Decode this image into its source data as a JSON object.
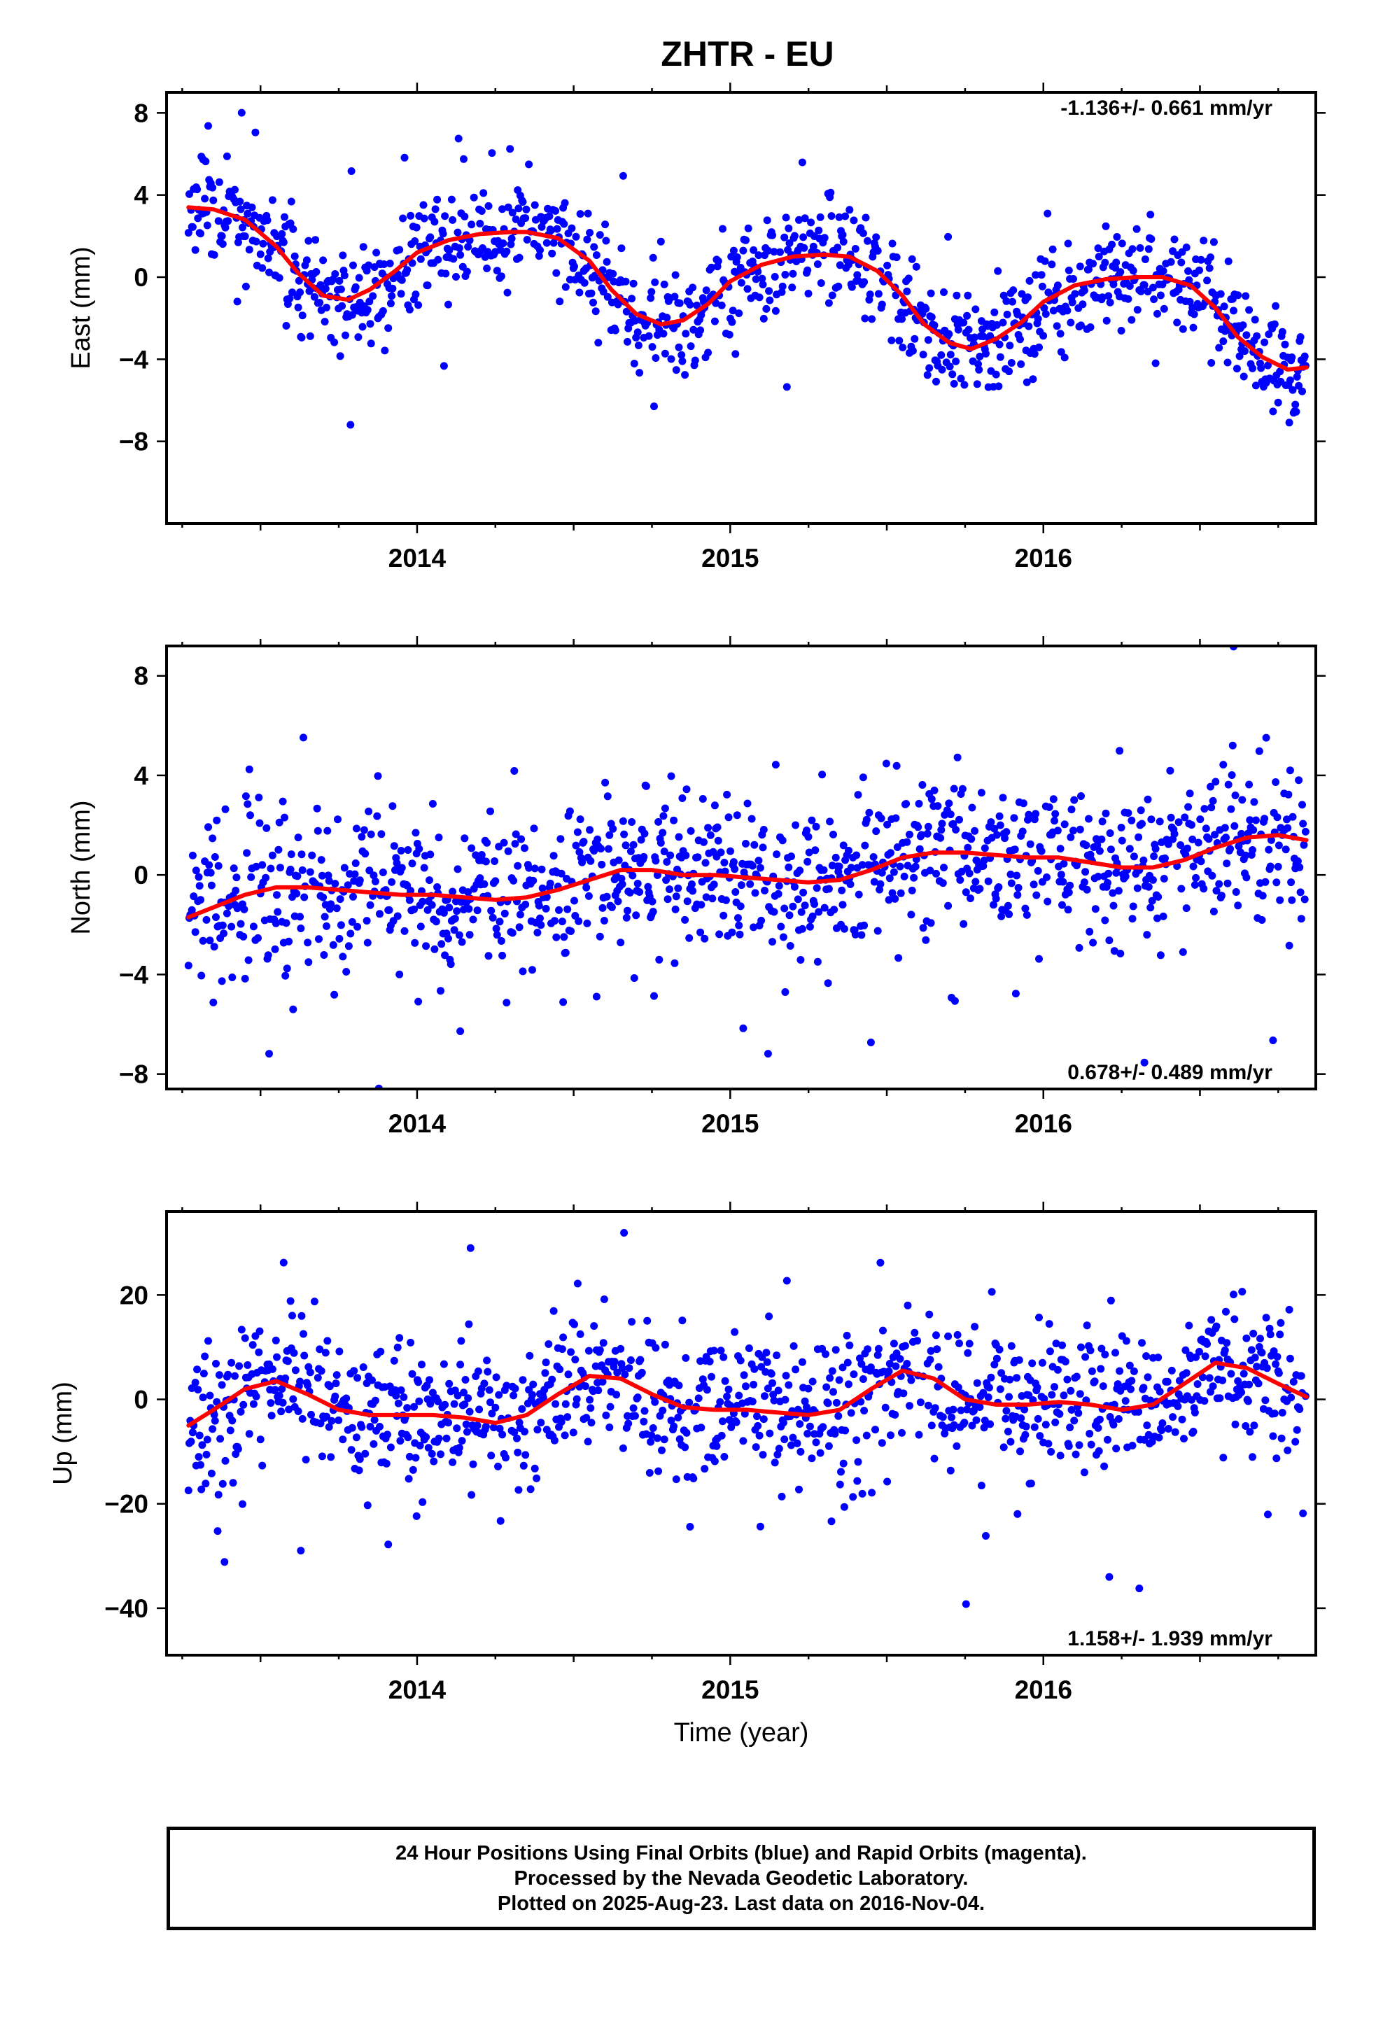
{
  "title": "ZHTR - EU",
  "xlabel": "Time (year)",
  "caption": {
    "line1": "24 Hour Positions Using Final Orbits (blue) and Rapid Orbits (magenta).",
    "line2": "Processed by the Nevada Geodetic Laboratory.",
    "line3": "Plotted on 2025-Aug-23. Last data on 2016-Nov-04."
  },
  "colors": {
    "points": "#0000ff",
    "fit": "#ff0000",
    "axes": "#000000"
  },
  "chart_data": [
    {
      "type": "scatter",
      "ylabel": "East (mm)",
      "rate": "-1.136+/- 0.661 mm/yr",
      "rate_position": "top-right",
      "xlim": [
        2013.2,
        2016.87
      ],
      "ylim": [
        -12,
        9
      ],
      "xticks": [
        2014,
        2015,
        2016
      ],
      "yticks": [
        8,
        4,
        0,
        -4,
        -8
      ],
      "fit": {
        "x": [
          2013.27,
          2013.35,
          2013.45,
          2013.55,
          2013.62,
          2013.7,
          2013.78,
          2013.85,
          2013.93,
          2014.0,
          2014.1,
          2014.2,
          2014.3,
          2014.35,
          2014.45,
          2014.55,
          2014.62,
          2014.7,
          2014.78,
          2014.85,
          2014.93,
          2015.0,
          2015.1,
          2015.2,
          2015.3,
          2015.38,
          2015.47,
          2015.55,
          2015.62,
          2015.7,
          2015.77,
          2015.85,
          2015.93,
          2016.0,
          2016.1,
          2016.2,
          2016.3,
          2016.38,
          2016.47,
          2016.55,
          2016.62,
          2016.7,
          2016.78,
          2016.84
        ],
        "y": [
          3.4,
          3.3,
          2.8,
          1.5,
          0.2,
          -0.9,
          -1.1,
          -0.6,
          0.3,
          1.2,
          1.8,
          2.1,
          2.2,
          2.2,
          1.9,
          0.8,
          -0.6,
          -1.8,
          -2.3,
          -2.1,
          -1.3,
          -0.2,
          0.6,
          1.0,
          1.1,
          1.0,
          0.3,
          -0.9,
          -2.3,
          -3.2,
          -3.5,
          -3.0,
          -2.2,
          -1.2,
          -0.4,
          -0.1,
          0.0,
          0.0,
          -0.4,
          -1.5,
          -2.9,
          -3.9,
          -4.5,
          -4.4
        ]
      },
      "series": [
        {
          "name": "Final Orbits",
          "params": {
            "noise": 1.3,
            "outlier_frac": 0.04,
            "outlier_size": 3.5,
            "seed": 11
          }
        }
      ]
    },
    {
      "type": "scatter",
      "ylabel": "North (mm)",
      "rate": "0.678+/- 0.489 mm/yr",
      "rate_position": "bottom-right",
      "xlim": [
        2013.2,
        2016.87
      ],
      "ylim": [
        -8.6,
        9.2
      ],
      "xticks": [
        2014,
        2015,
        2016
      ],
      "yticks": [
        8,
        4,
        0,
        -4,
        -8
      ],
      "fit": {
        "x": [
          2013.27,
          2013.35,
          2013.45,
          2013.55,
          2013.65,
          2013.75,
          2013.85,
          2013.95,
          2014.05,
          2014.15,
          2014.25,
          2014.35,
          2014.45,
          2014.55,
          2014.65,
          2014.75,
          2014.85,
          2014.95,
          2015.05,
          2015.15,
          2015.25,
          2015.35,
          2015.45,
          2015.55,
          2015.65,
          2015.75,
          2015.85,
          2015.95,
          2016.05,
          2016.15,
          2016.25,
          2016.35,
          2016.45,
          2016.55,
          2016.65,
          2016.75,
          2016.84
        ],
        "y": [
          -1.7,
          -1.3,
          -0.8,
          -0.5,
          -0.5,
          -0.6,
          -0.7,
          -0.8,
          -0.8,
          -0.9,
          -1.0,
          -0.9,
          -0.6,
          -0.2,
          0.2,
          0.2,
          0.0,
          0.0,
          -0.1,
          -0.2,
          -0.3,
          -0.2,
          0.2,
          0.7,
          0.9,
          0.9,
          0.8,
          0.7,
          0.7,
          0.5,
          0.3,
          0.3,
          0.6,
          1.1,
          1.5,
          1.6,
          1.4
        ]
      },
      "series": [
        {
          "name": "Final Orbits",
          "params": {
            "noise": 1.5,
            "outlier_frac": 0.03,
            "outlier_size": 4.0,
            "seed": 23
          }
        }
      ]
    },
    {
      "type": "scatter",
      "ylabel": "Up (mm)",
      "rate": "1.158+/- 1.939 mm/yr",
      "rate_position": "bottom-right",
      "xlim": [
        2013.2,
        2016.87
      ],
      "ylim": [
        -49,
        36
      ],
      "xticks": [
        2014,
        2015,
        2016
      ],
      "yticks": [
        20,
        0,
        -20,
        -40
      ],
      "fit": {
        "x": [
          2013.27,
          2013.35,
          2013.45,
          2013.55,
          2013.65,
          2013.75,
          2013.85,
          2013.95,
          2014.05,
          2014.15,
          2014.25,
          2014.35,
          2014.45,
          2014.55,
          2014.65,
          2014.75,
          2014.85,
          2014.95,
          2015.05,
          2015.15,
          2015.25,
          2015.35,
          2015.45,
          2015.55,
          2015.65,
          2015.75,
          2015.85,
          2015.95,
          2016.05,
          2016.15,
          2016.25,
          2016.35,
          2016.45,
          2016.55,
          2016.65,
          2016.75,
          2016.84
        ],
        "y": [
          -5,
          -2,
          2,
          3.5,
          1,
          -2,
          -3,
          -3,
          -3,
          -3.5,
          -4.5,
          -3,
          1,
          4.5,
          4,
          1,
          -1.5,
          -2,
          -2,
          -2.5,
          -3,
          -2,
          2,
          5.5,
          4,
          0,
          -1,
          -1,
          -0.5,
          -1,
          -2,
          -1,
          3,
          7,
          6,
          3,
          0.5
        ]
      },
      "series": [
        {
          "name": "Final Orbits",
          "params": {
            "noise": 6.5,
            "outlier_frac": 0.04,
            "outlier_size": 18,
            "seed": 37
          }
        }
      ]
    }
  ]
}
